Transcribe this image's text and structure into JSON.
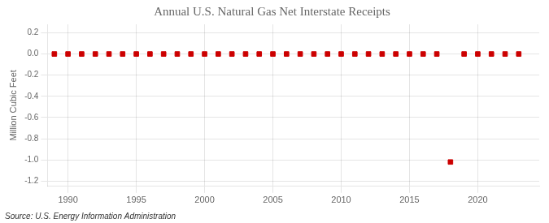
{
  "chart_data": {
    "type": "scatter",
    "title": "Annual U.S. Natural Gas Net Interstate Receipts",
    "ylabel": "Million Cubic Feet",
    "annotation": "Source: U.S. Energy Information Administration",
    "x": [
      1989,
      1990,
      1991,
      1992,
      1993,
      1994,
      1995,
      1996,
      1997,
      1998,
      1999,
      2000,
      2001,
      2002,
      2003,
      2004,
      2005,
      2006,
      2007,
      2008,
      2009,
      2010,
      2011,
      2012,
      2013,
      2014,
      2015,
      2016,
      2017,
      2018,
      2019,
      2020,
      2021,
      2022,
      2023
    ],
    "values": [
      0,
      0,
      0,
      0,
      0,
      0,
      0,
      0,
      0,
      0,
      0,
      0,
      0,
      0,
      0,
      0,
      0,
      0,
      0,
      0,
      0,
      0,
      0,
      0,
      0,
      0,
      0,
      0,
      0,
      -1.02,
      0,
      0,
      0,
      0,
      0
    ],
    "color": "#cc0000",
    "marker": "square",
    "xlim": [
      1988.5,
      2024.5
    ],
    "ylim": [
      -1.25,
      0.28
    ],
    "xticks": [
      1990,
      1995,
      2000,
      2005,
      2010,
      2015,
      2020
    ],
    "yticks": [
      0.2,
      {
        "value": 0.0,
        "label": "0.0"
      },
      -0.2,
      -0.4,
      -0.6,
      -0.8,
      {
        "value": -1.0,
        "label": "-1.0"
      },
      -1.2
    ],
    "grid": true
  }
}
